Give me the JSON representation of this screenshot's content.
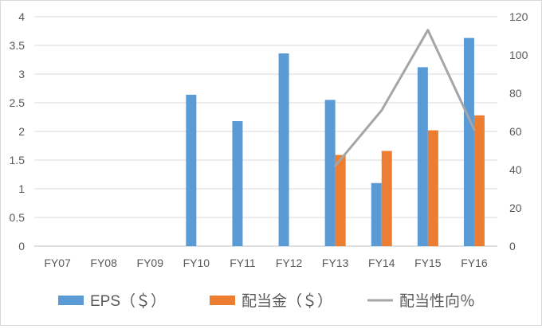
{
  "chart_data": {
    "type": "bar+line",
    "categories": [
      "FY07",
      "FY08",
      "FY09",
      "FY10",
      "FY11",
      "FY12",
      "FY13",
      "FY14",
      "FY15",
      "FY16"
    ],
    "series": [
      {
        "name": "EPS（＄）",
        "type": "bar",
        "axis": "left",
        "color": "#5b9bd5",
        "values": [
          null,
          null,
          null,
          2.64,
          2.18,
          3.36,
          2.55,
          1.1,
          3.12,
          3.63
        ]
      },
      {
        "name": "配当金（＄）",
        "type": "bar",
        "axis": "left",
        "color": "#ed7d31",
        "values": [
          null,
          null,
          null,
          null,
          null,
          null,
          1.59,
          1.66,
          2.02,
          2.28
        ]
      },
      {
        "name": "配当性向％",
        "type": "line",
        "axis": "right",
        "color": "#a5a5a5",
        "values": [
          null,
          null,
          null,
          null,
          null,
          null,
          42,
          71,
          113,
          61
        ]
      }
    ],
    "left_axis": {
      "min": 0,
      "max": 4,
      "ticks": [
        "0",
        "0.5",
        "1",
        "1.5",
        "2",
        "2.5",
        "3",
        "3.5",
        "4"
      ]
    },
    "right_axis": {
      "min": 0,
      "max": 120,
      "ticks": [
        "0",
        "20",
        "40",
        "60",
        "80",
        "100",
        "120"
      ]
    },
    "grid": true,
    "legend_position": "bottom"
  }
}
